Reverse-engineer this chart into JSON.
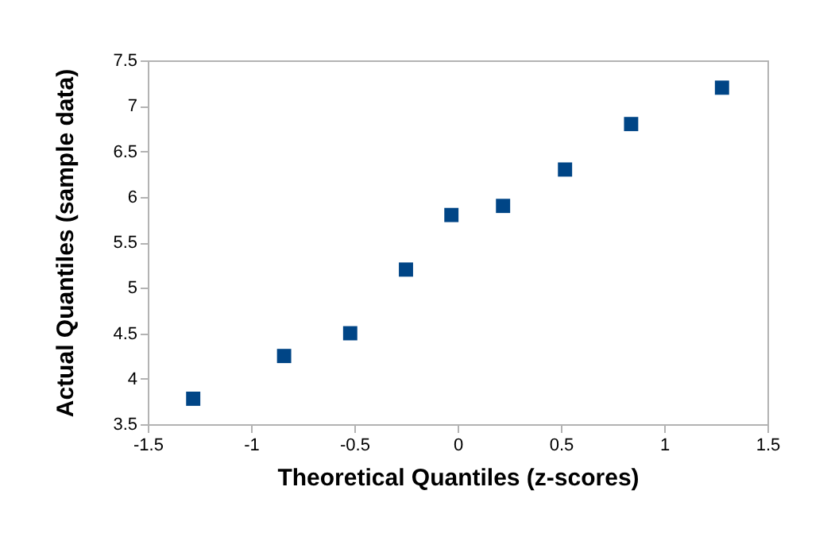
{
  "chart_data": {
    "type": "scatter",
    "xlabel": "Theoretical Quantiles (z-scores)",
    "ylabel": "Actual Quantiles (sample data)",
    "x": [
      -1.28,
      -0.84,
      -0.52,
      -0.25,
      -0.03,
      0.22,
      0.52,
      0.84,
      1.28
    ],
    "series": [
      {
        "color": "#004586",
        "values": [
          3.78,
          4.25,
          4.5,
          5.2,
          5.8,
          5.9,
          6.3,
          6.8,
          7.2
        ]
      }
    ],
    "xlim": [
      -1.5,
      1.5
    ],
    "xticks": [
      -1.5,
      -1,
      -0.5,
      0,
      0.5,
      1,
      1.5
    ],
    "ylim": [
      3.5,
      7.5
    ],
    "yticks": [
      3.5,
      4,
      4.5,
      5,
      5.5,
      6,
      6.5,
      7,
      7.5
    ],
    "marker": "square",
    "grid": false,
    "legend": false
  }
}
